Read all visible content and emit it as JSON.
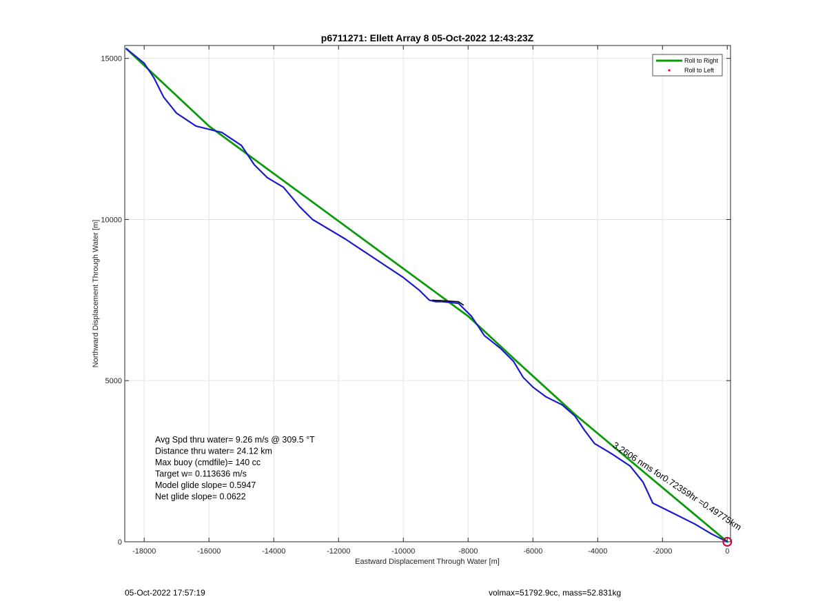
{
  "chart_data": {
    "type": "line",
    "title": "p6711271: Ellett Array 8 05-Oct-2022 12:43:23Z",
    "xlabel": "Eastward Displacement Through Water [m]",
    "ylabel": "Northward Displacement Through Water [m]",
    "xlim": [
      -18600,
      100
    ],
    "ylim": [
      0,
      15400
    ],
    "x_ticks": [
      -18000,
      -16000,
      -14000,
      -12000,
      -10000,
      -8000,
      -6000,
      -4000,
      -2000,
      0
    ],
    "y_ticks": [
      0,
      5000,
      10000,
      15000
    ],
    "grid": true,
    "legend_position": "top-right",
    "legend": [
      {
        "label": "Roll to Right",
        "color": "#0a9a0a",
        "marker": "line"
      },
      {
        "label": "Roll to Left",
        "color": "#ff0000",
        "marker": "dot"
      }
    ],
    "series": [
      {
        "name": "Roll to Right",
        "color": "#0a9a0a",
        "x": [
          -18550,
          -16000,
          -8000,
          -6500,
          -4700,
          -2500,
          0
        ],
        "y": [
          15300,
          12900,
          7000,
          5600,
          3950,
          2100,
          0
        ]
      },
      {
        "color": "#1a1acd",
        "x": [
          -18550,
          -18000,
          -17700,
          -17400,
          -17000,
          -16400,
          -15600,
          -15000,
          -14600,
          -14200,
          -13700,
          -13200,
          -12800,
          -12300,
          -11800,
          -11200,
          -10600,
          -10000,
          -9500,
          -9200,
          -9000,
          -8800,
          -8300,
          -7900,
          -7500,
          -7000,
          -6600,
          -6300,
          -6000,
          -5600,
          -5100,
          -4700,
          -4400,
          -4100,
          -3600,
          -3000,
          -2600,
          -2300,
          -1700,
          -1000,
          -500,
          -100,
          0
        ],
        "y": [
          15300,
          14850,
          14400,
          13800,
          13300,
          12900,
          12700,
          12300,
          11700,
          11300,
          11000,
          10400,
          10000,
          9700,
          9400,
          9000,
          8600,
          8200,
          7800,
          7500,
          7450,
          7450,
          7400,
          7000,
          6400,
          6000,
          5600,
          5100,
          4800,
          4500,
          4250,
          3900,
          3450,
          3050,
          2750,
          2350,
          1850,
          1200,
          900,
          550,
          250,
          50,
          0
        ]
      },
      {
        "color": "#000000",
        "x": [
          -9100,
          -8300,
          -8150
        ],
        "y": [
          7500,
          7450,
          7350
        ]
      }
    ],
    "end_marker": {
      "x": 0,
      "y": 0,
      "color": "#cc0033"
    },
    "annotations": [
      "Avg Spd thru water=  9.26 m/s @ 309.5 °T",
      "Distance thru water= 24.12 km",
      "Max buoy (cmdfile)= 140 cc",
      "Target w= 0.113636 m/s",
      "Model glide slope= 0.5947",
      "Net glide slope= 0.0622"
    ],
    "rotated_label": "3.2606 nms for0.72359hr =0.49775km"
  },
  "footer": {
    "left": "05-Oct-2022 17:57:19",
    "right": "volmax=51792.9cc, mass=52.831kg"
  }
}
